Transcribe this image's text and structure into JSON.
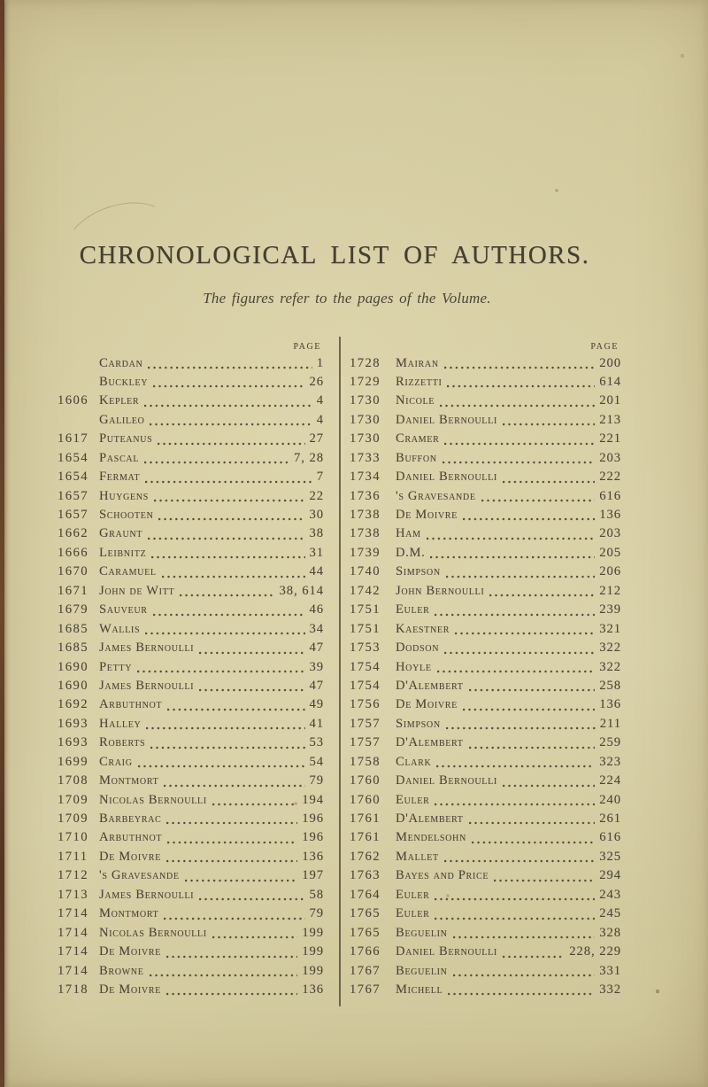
{
  "document": {
    "title": "CHRONOLOGICAL LIST OF AUTHORS.",
    "subtitle": "The figures refer to the pages of the Volume.",
    "page_column_header": "PAGE"
  },
  "colors": {
    "paper": "#d6cda2",
    "ink": "#4e463a",
    "divider_rule": "#564a38",
    "binding_edge": "#5a2e1f"
  },
  "columns": [
    {
      "side": "left",
      "entries": [
        {
          "year": "",
          "name": "Cardan",
          "page": "1"
        },
        {
          "year": "",
          "name": "Buckley",
          "page": "26"
        },
        {
          "year": "1606",
          "name": "Kepler",
          "page": "4"
        },
        {
          "year": "",
          "name": "Galileo",
          "page": "4"
        },
        {
          "year": "1617",
          "name": "Puteanus",
          "page": "27"
        },
        {
          "year": "1654",
          "name": "Pascal",
          "page": "7, 28"
        },
        {
          "year": "1654",
          "name": "Fermat",
          "page": "7"
        },
        {
          "year": "1657",
          "name": "Huygens",
          "page": "22"
        },
        {
          "year": "1657",
          "name": "Schooten",
          "page": "30"
        },
        {
          "year": "1662",
          "name": "Graunt",
          "page": "38"
        },
        {
          "year": "1666",
          "name": "Leibnitz",
          "page": "31"
        },
        {
          "year": "1670",
          "name": "Caramuel",
          "page": "44"
        },
        {
          "year": "1671",
          "name": "John de Witt",
          "page": "38, 614"
        },
        {
          "year": "1679",
          "name": "Sauveur",
          "page": "46"
        },
        {
          "year": "1685",
          "name": "Wallis",
          "page": "34"
        },
        {
          "year": "1685",
          "name": "James Bernoulli",
          "page": "47"
        },
        {
          "year": "1690",
          "name": "Petty",
          "page": "39"
        },
        {
          "year": "1690",
          "name": "James Bernoulli",
          "page": "47"
        },
        {
          "year": "1692",
          "name": "Arbuthnot",
          "page": "49"
        },
        {
          "year": "1693",
          "name": "Halley",
          "page": "41"
        },
        {
          "year": "1693",
          "name": "Roberts",
          "page": "53"
        },
        {
          "year": "1699",
          "name": "Craig",
          "page": "54"
        },
        {
          "year": "1708",
          "name": "Montmort",
          "page": "79"
        },
        {
          "year": "1709",
          "name": "Nicolas Bernoulli",
          "page": "194"
        },
        {
          "year": "1709",
          "name": "Barbeyrac",
          "page": "196"
        },
        {
          "year": "1710",
          "name": "Arbuthnot",
          "page": "196"
        },
        {
          "year": "1711",
          "name": "De Moivre",
          "page": "136"
        },
        {
          "year": "1712",
          "name": "'s Gravesande",
          "page": "197"
        },
        {
          "year": "1713",
          "name": "James Bernoulli",
          "page": "58"
        },
        {
          "year": "1714",
          "name": "Montmort",
          "page": "79"
        },
        {
          "year": "1714",
          "name": "Nicolas Bernoulli",
          "page": "199"
        },
        {
          "year": "1714",
          "name": "De Moivre",
          "page": "199"
        },
        {
          "year": "1714",
          "name": "Browne",
          "page": "199"
        },
        {
          "year": "1718",
          "name": "De Moivre",
          "page": "136"
        }
      ]
    },
    {
      "side": "right",
      "entries": [
        {
          "year": "1728",
          "name": "Mairan",
          "page": "200"
        },
        {
          "year": "1729",
          "name": "Rizzetti",
          "page": "614"
        },
        {
          "year": "1730",
          "name": "Nicole",
          "page": "201"
        },
        {
          "year": "1730",
          "name": "Daniel Bernoulli",
          "page": "213"
        },
        {
          "year": "1730",
          "name": "Cramer",
          "page": "221"
        },
        {
          "year": "1733",
          "name": "Buffon",
          "page": "203"
        },
        {
          "year": "1734",
          "name": "Daniel Bernoulli",
          "page": "222"
        },
        {
          "year": "1736",
          "name": "'s Gravesande",
          "page": "616"
        },
        {
          "year": "1738",
          "name": "De Moivre",
          "page": "136"
        },
        {
          "year": "1738",
          "name": "Ham",
          "page": "203"
        },
        {
          "year": "1739",
          "name": "D.M.",
          "page": "205"
        },
        {
          "year": "1740",
          "name": "Simpson",
          "page": "206"
        },
        {
          "year": "1742",
          "name": "John Bernoulli",
          "page": "212"
        },
        {
          "year": "1751",
          "name": "Euler",
          "page": "239"
        },
        {
          "year": "1751",
          "name": "Kaestner",
          "page": "321"
        },
        {
          "year": "1753",
          "name": "Dodson",
          "page": "322"
        },
        {
          "year": "1754",
          "name": "Hoyle",
          "page": "322"
        },
        {
          "year": "1754",
          "name": "D'Alembert",
          "page": "258"
        },
        {
          "year": "1756",
          "name": "De Moivre",
          "page": "136"
        },
        {
          "year": "1757",
          "name": "Simpson",
          "page": "211"
        },
        {
          "year": "1757",
          "name": "D'Alembert",
          "page": "259"
        },
        {
          "year": "1758",
          "name": "Clark",
          "page": "323"
        },
        {
          "year": "1760",
          "name": "Daniel Bernoulli",
          "page": "224"
        },
        {
          "year": "1760",
          "name": "Euler",
          "page": "240"
        },
        {
          "year": "1761",
          "name": "D'Alembert",
          "page": "261"
        },
        {
          "year": "1761",
          "name": "Mendelsohn",
          "page": "616"
        },
        {
          "year": "1762",
          "name": "Mallet",
          "page": "325"
        },
        {
          "year": "1763",
          "name": "Bayes and Price",
          "page": "294"
        },
        {
          "year": "1764",
          "name": "Euler",
          "page": "243"
        },
        {
          "year": "1765",
          "name": "Euler",
          "page": "245"
        },
        {
          "year": "1765",
          "name": "Beguelin",
          "page": "328"
        },
        {
          "year": "1766",
          "name": "Daniel Bernoulli",
          "page": "228, 229"
        },
        {
          "year": "1767",
          "name": "Beguelin",
          "page": "331"
        },
        {
          "year": "1767",
          "name": "Michell",
          "page": "332"
        }
      ]
    }
  ]
}
